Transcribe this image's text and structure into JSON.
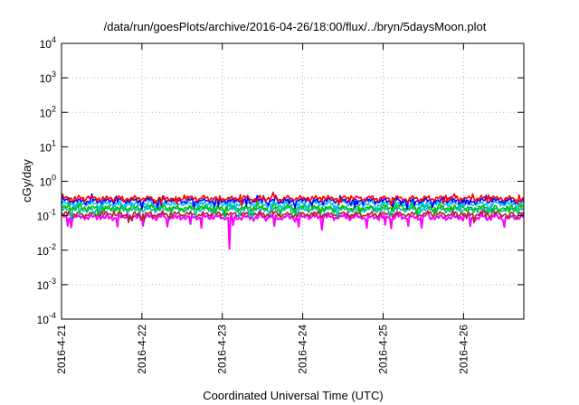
{
  "chart_data": {
    "type": "line",
    "title": "/data/run/goesPlots/archive/2016-04-26/18:00/flux/../bryn/5daysMoon.plot",
    "xlabel": "Coordinated Universal Time (UTC)",
    "ylabel": "cGy/day",
    "yscale": "log",
    "ylim": [
      0.0001,
      10000
    ],
    "xlim": [
      "2016-04-21",
      "2016-04-26T18:00"
    ],
    "grid": true,
    "x_ticks": [
      "2016-4-21",
      "2016-4-22",
      "2016-4-23",
      "2016-4-24",
      "2016-4-25",
      "2016-4-26"
    ],
    "y_ticks": [
      {
        "base": "10",
        "exp": "-4"
      },
      {
        "base": "10",
        "exp": "-3"
      },
      {
        "base": "10",
        "exp": "-2"
      },
      {
        "base": "10",
        "exp": "-1"
      },
      {
        "base": "10",
        "exp": "0"
      },
      {
        "base": "10",
        "exp": "1"
      },
      {
        "base": "10",
        "exp": "2"
      },
      {
        "base": "10",
        "exp": "3"
      },
      {
        "base": "10",
        "exp": "4"
      }
    ],
    "series": [
      {
        "color": "#ff00ff",
        "typical_value": 0.09,
        "min_value": 0.011,
        "min_at": "2016-04-23T02:00"
      },
      {
        "color": "#a52a2a",
        "typical_value": 0.11
      },
      {
        "color": "#00c0a0",
        "typical_value": 0.15
      },
      {
        "color": "#00c000",
        "typical_value": 0.17
      },
      {
        "color": "#00bfff",
        "typical_value": 0.22
      },
      {
        "color": "#0000ff",
        "typical_value": 0.27
      },
      {
        "color": "#ff0000",
        "typical_value": 0.32
      }
    ]
  }
}
